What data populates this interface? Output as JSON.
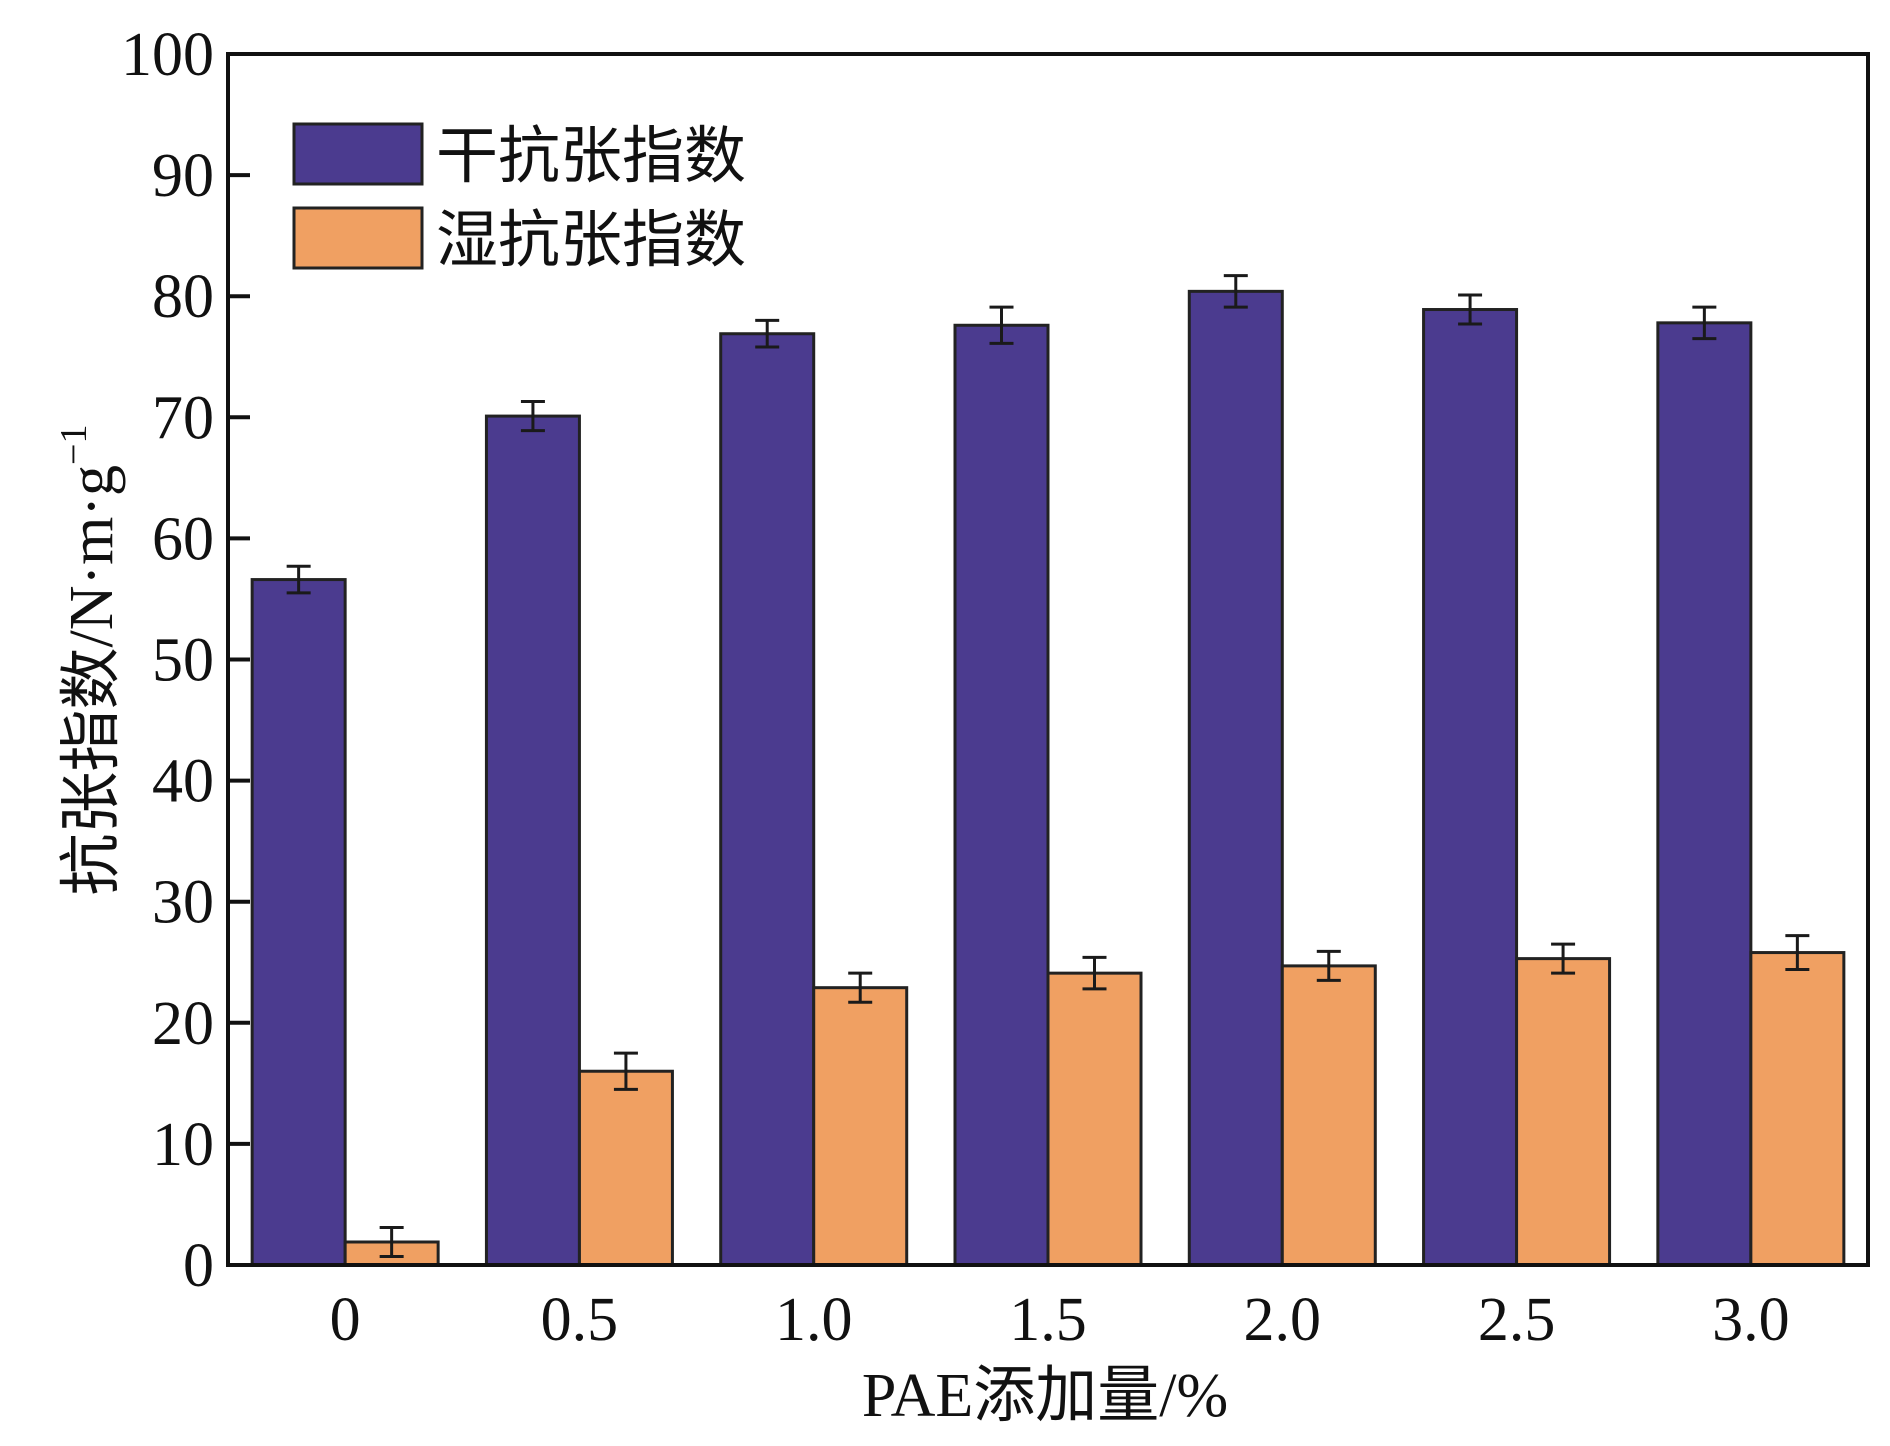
{
  "chart_data": {
    "type": "bar",
    "title": "",
    "xlabel": "PAE添加量/%",
    "ylabel": "抗张指数/N·m·g",
    "ylabel_superscript": "−1",
    "categories": [
      "0",
      "0.5",
      "1.0",
      "1.5",
      "2.0",
      "2.5",
      "3.0"
    ],
    "ylim": [
      0,
      100
    ],
    "yticks": [
      "0",
      "10",
      "20",
      "30",
      "40",
      "50",
      "60",
      "70",
      "80",
      "90",
      "100"
    ],
    "grid": false,
    "legend_position": "top-left",
    "series": [
      {
        "name": "干抗张指数",
        "color": "#4b3b8f",
        "values": [
          56.6,
          70.1,
          76.9,
          77.6,
          80.4,
          78.9,
          77.8
        ],
        "errors": [
          1.1,
          1.2,
          1.1,
          1.5,
          1.3,
          1.2,
          1.3
        ]
      },
      {
        "name": "湿抗张指数",
        "color": "#f0a062",
        "values": [
          1.9,
          16.0,
          22.9,
          24.1,
          24.7,
          25.3,
          25.8
        ],
        "errors": [
          1.2,
          1.5,
          1.2,
          1.3,
          1.2,
          1.2,
          1.4
        ]
      }
    ]
  }
}
